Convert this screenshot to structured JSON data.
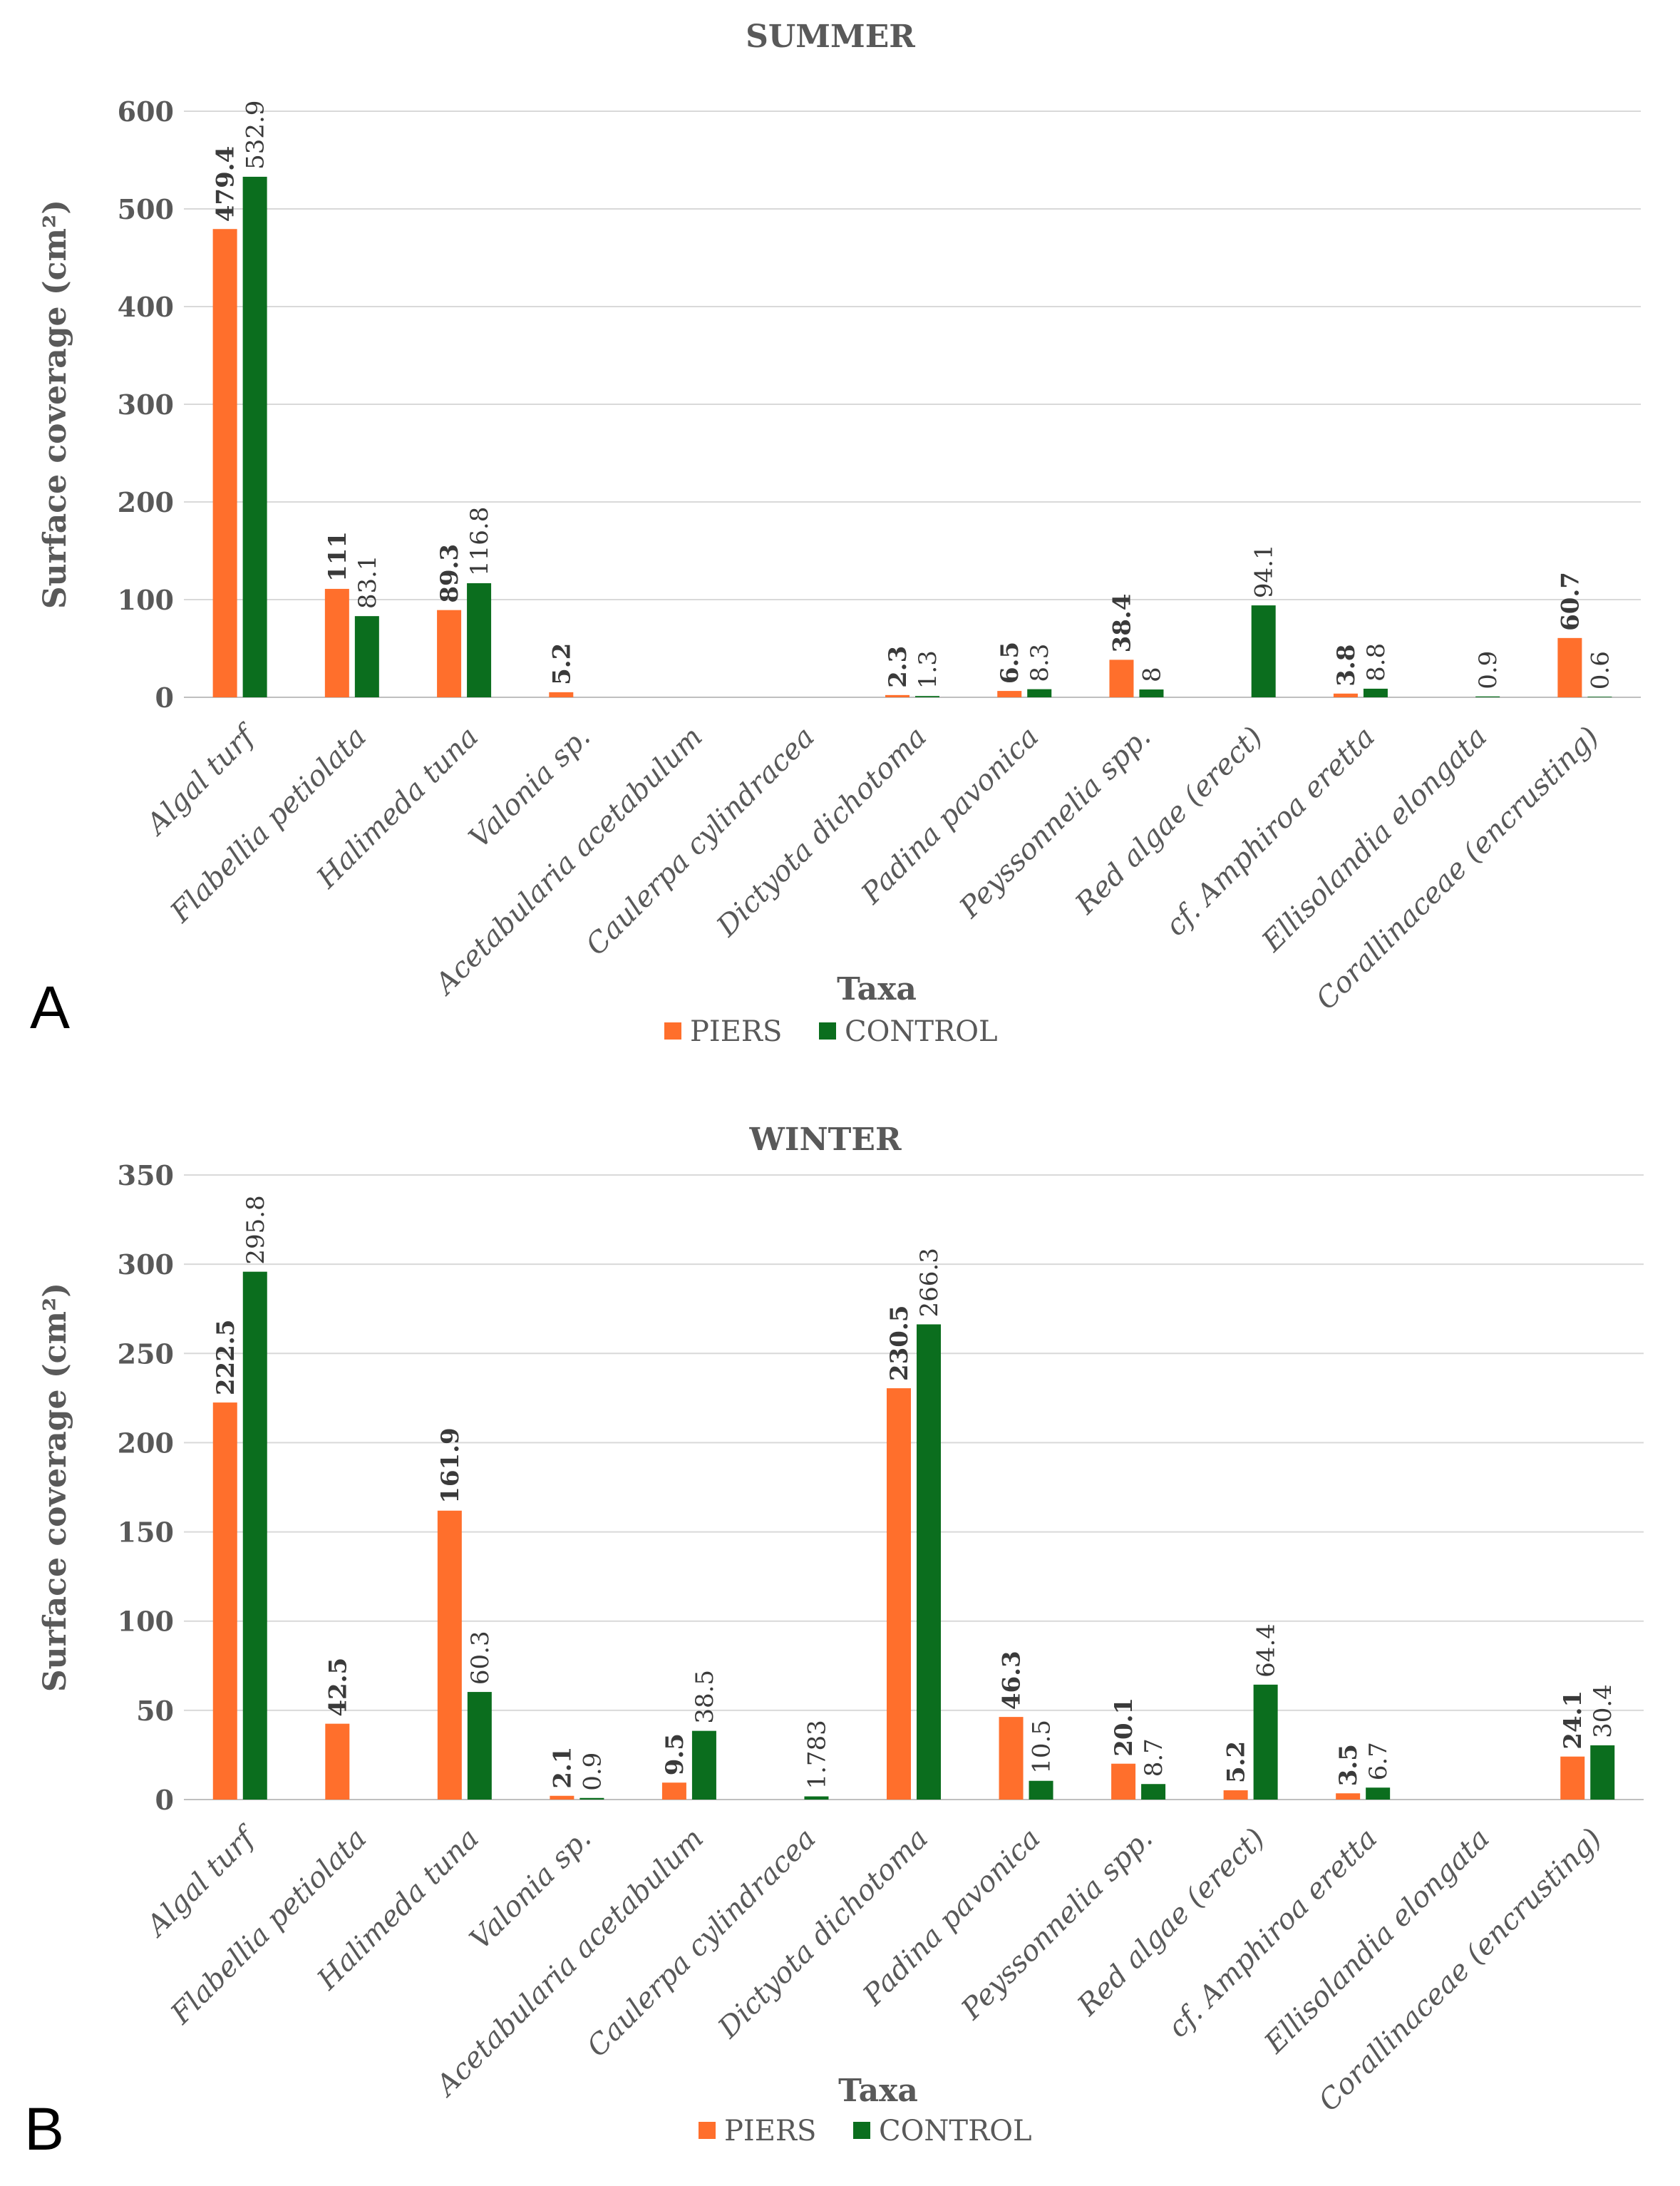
{
  "chart_data": [
    {
      "panel": "A",
      "type": "bar",
      "title": "SUMMER",
      "xlabel": "Taxa",
      "ylabel": "Surface coverage (cm²)",
      "ylim": [
        0,
        600
      ],
      "yticks": [
        0,
        100,
        200,
        300,
        400,
        500,
        600
      ],
      "legend_position": "bottom",
      "categories": [
        "Algal turf",
        "Flabellia petiolata",
        "Halimeda tuna",
        "Valonia sp.",
        "Acetabularia acetabulum",
        "Caulerpa cylindracea",
        "Dictyota dichotoma",
        "Padina pavonica",
        "Peyssonnelia spp.",
        "Red algae (erect)",
        "cf. Amphiroa eretta",
        "Ellisolandia elongata",
        "Corallinaceae (encrusting)"
      ],
      "series": [
        {
          "name": "PIERS",
          "color": "#FF6F2C",
          "values": [
            479.4,
            111,
            89.3,
            5.2,
            null,
            null,
            2.3,
            6.5,
            38.4,
            null,
            3.8,
            null,
            60.7
          ],
          "labels": [
            "479.4",
            "111",
            "89.3",
            "5.2",
            null,
            null,
            "2.3",
            "6.5",
            "38.4",
            null,
            "3.8",
            null,
            "60.7"
          ]
        },
        {
          "name": "CONTROL",
          "color": "#0B6E1E",
          "values": [
            532.9,
            83.1,
            116.8,
            null,
            null,
            null,
            1.3,
            8.3,
            8,
            94.1,
            8.8,
            0.9,
            0.6
          ],
          "labels": [
            "532.9",
            "83.1",
            "116.8",
            null,
            null,
            null,
            "1.3",
            "8.3",
            "8",
            "94.1",
            "8.8",
            "0.9",
            "0.6"
          ]
        }
      ]
    },
    {
      "panel": "B",
      "type": "bar",
      "title": "WINTER",
      "xlabel": "Taxa",
      "ylabel": "Surface coverage (cm²)",
      "ylim": [
        0,
        350
      ],
      "yticks": [
        0,
        50,
        100,
        150,
        200,
        250,
        300,
        350
      ],
      "legend_position": "bottom",
      "categories": [
        "Algal turf",
        "Flabellia petiolata",
        "Halimeda tuna",
        "Valonia sp.",
        "Acetabularia acetabulum",
        "Caulerpa cylindracea",
        "Dictyota dichotoma",
        "Padina pavonica",
        "Peyssonnelia spp.",
        "Red algae (erect)",
        "cf. Amphiroa eretta",
        "Ellisolandia elongata",
        "Corallinaceae (encrusting)"
      ],
      "series": [
        {
          "name": "PIERS",
          "color": "#FF6F2C",
          "values": [
            222.5,
            42.5,
            161.9,
            2.1,
            9.5,
            null,
            230.5,
            46.3,
            20.1,
            5.2,
            3.5,
            null,
            24.1
          ],
          "labels": [
            "222.5",
            "42.5",
            "161.9",
            "2.1",
            "9.5",
            null,
            "230.5",
            "46.3",
            "20.1",
            "5.2",
            "3.5",
            null,
            "24.1"
          ]
        },
        {
          "name": "CONTROL",
          "color": "#0B6E1E",
          "values": [
            295.8,
            null,
            60.3,
            0.9,
            38.5,
            1.783,
            266.3,
            10.5,
            8.7,
            64.4,
            6.7,
            null,
            30.4
          ],
          "labels": [
            "295.8",
            null,
            "60.3",
            "0.9",
            "38.5",
            "1.783",
            "266.3",
            "10.5",
            "8.7",
            "64.4",
            "6.7",
            null,
            "30.4"
          ]
        }
      ]
    }
  ]
}
